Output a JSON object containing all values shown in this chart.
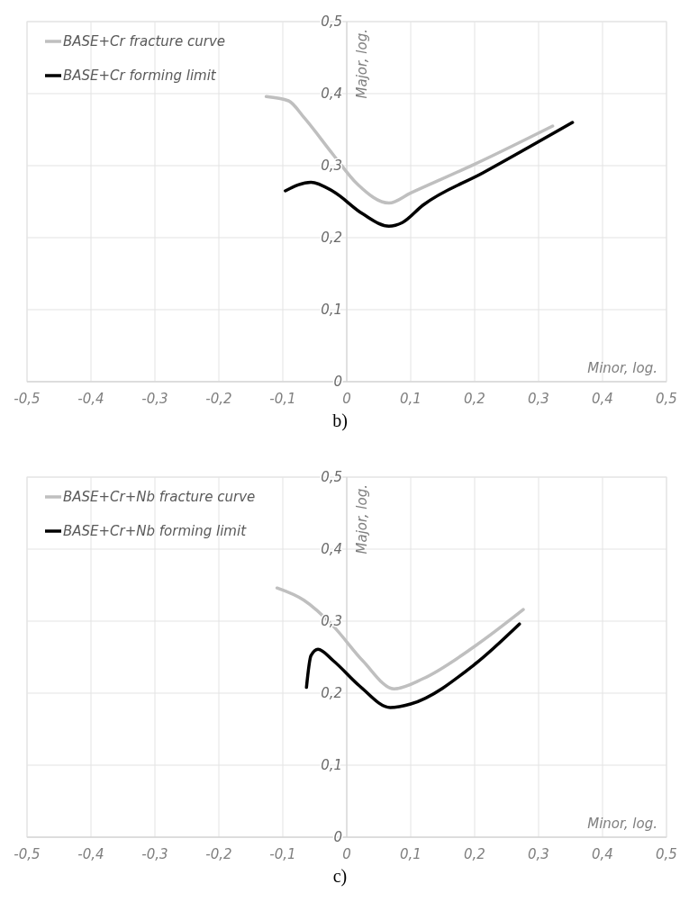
{
  "chart_data": [
    {
      "type": "line",
      "xlabel": "Minor, log.",
      "ylabel": "Major, log.",
      "annotations": [
        "b)"
      ],
      "xlim": [
        -0.5,
        0.5
      ],
      "ylim": [
        0,
        0.5
      ],
      "xticks": [
        {
          "value": -0.5,
          "label": "-0,5"
        },
        {
          "value": -0.4,
          "label": "-0,4"
        },
        {
          "value": -0.3,
          "label": "-0,3"
        },
        {
          "value": -0.2,
          "label": "-0,2"
        },
        {
          "value": -0.1,
          "label": "-0,1"
        },
        {
          "value": 0,
          "label": "0"
        },
        {
          "value": 0.1,
          "label": "0,1"
        },
        {
          "value": 0.2,
          "label": "0,2"
        },
        {
          "value": 0.3,
          "label": "0,3"
        },
        {
          "value": 0.4,
          "label": "0,4"
        },
        {
          "value": 0.5,
          "label": "0,5"
        }
      ],
      "yticks": [
        {
          "value": 0,
          "label": "0"
        },
        {
          "value": 0.1,
          "label": "0,1"
        },
        {
          "value": 0.2,
          "label": "0,2"
        },
        {
          "value": 0.3,
          "label": "0,3"
        },
        {
          "value": 0.4,
          "label": "0,4"
        },
        {
          "value": 0.5,
          "label": "0,5"
        }
      ],
      "grid": true,
      "legend": "top left",
      "marker": "none",
      "line_style": "solid",
      "series": [
        {
          "name": "BASE+Cr fracture curve",
          "color": "#bfbfbf",
          "x": [
            -0.126,
            -0.091,
            -0.067,
            -0.021,
            0.017,
            0.066,
            0.1,
            0.2,
            0.322
          ],
          "values": [
            0.396,
            0.39,
            0.367,
            0.315,
            0.274,
            0.248,
            0.262,
            0.302,
            0.355
          ]
        },
        {
          "name": "BASE+Cr forming limit",
          "color": "#000000",
          "x": [
            -0.096,
            -0.056,
            -0.021,
            0.025,
            0.066,
            0.087,
            0.119,
            0.213,
            0.353
          ],
          "values": [
            0.265,
            0.277,
            0.264,
            0.233,
            0.216,
            0.221,
            0.245,
            0.29,
            0.36
          ]
        }
      ]
    },
    {
      "type": "line",
      "xlabel": "Minor, log.",
      "ylabel": "Major, log.",
      "annotations": [
        "c)"
      ],
      "xlim": [
        -0.5,
        0.5
      ],
      "ylim": [
        0,
        0.5
      ],
      "xticks": [
        {
          "value": -0.5,
          "label": "-0,5"
        },
        {
          "value": -0.4,
          "label": "-0,4"
        },
        {
          "value": -0.3,
          "label": "-0,3"
        },
        {
          "value": -0.2,
          "label": "-0,2"
        },
        {
          "value": -0.1,
          "label": "-0,1"
        },
        {
          "value": 0,
          "label": "0"
        },
        {
          "value": 0.1,
          "label": "0,1"
        },
        {
          "value": 0.2,
          "label": "0,2"
        },
        {
          "value": 0.3,
          "label": "0,3"
        },
        {
          "value": 0.4,
          "label": "0,4"
        },
        {
          "value": 0.5,
          "label": "0,5"
        }
      ],
      "yticks": [
        {
          "value": 0,
          "label": "0"
        },
        {
          "value": 0.1,
          "label": "0,1"
        },
        {
          "value": 0.2,
          "label": "0,2"
        },
        {
          "value": 0.3,
          "label": "0,3"
        },
        {
          "value": 0.4,
          "label": "0,4"
        },
        {
          "value": 0.5,
          "label": "0,5"
        }
      ],
      "grid": true,
      "legend": "top left",
      "marker": "none",
      "line_style": "solid",
      "series": [
        {
          "name": "BASE+Cr+Nb fracture curve",
          "color": "#bfbfbf",
          "x": [
            -0.109,
            -0.067,
            -0.021,
            0.025,
            0.074,
            0.119,
            0.2,
            0.276
          ],
          "values": [
            0.346,
            0.329,
            0.293,
            0.245,
            0.206,
            0.22,
            0.265,
            0.316
          ]
        },
        {
          "name": "BASE+Cr+Nb forming limit",
          "color": "#000000",
          "x": [
            -0.063,
            -0.056,
            -0.045,
            -0.021,
            0.02,
            0.068,
            0.1,
            0.2,
            0.27
          ],
          "values": [
            0.208,
            0.252,
            0.261,
            0.245,
            0.21,
            0.18,
            0.185,
            0.24,
            0.296
          ]
        }
      ]
    }
  ]
}
